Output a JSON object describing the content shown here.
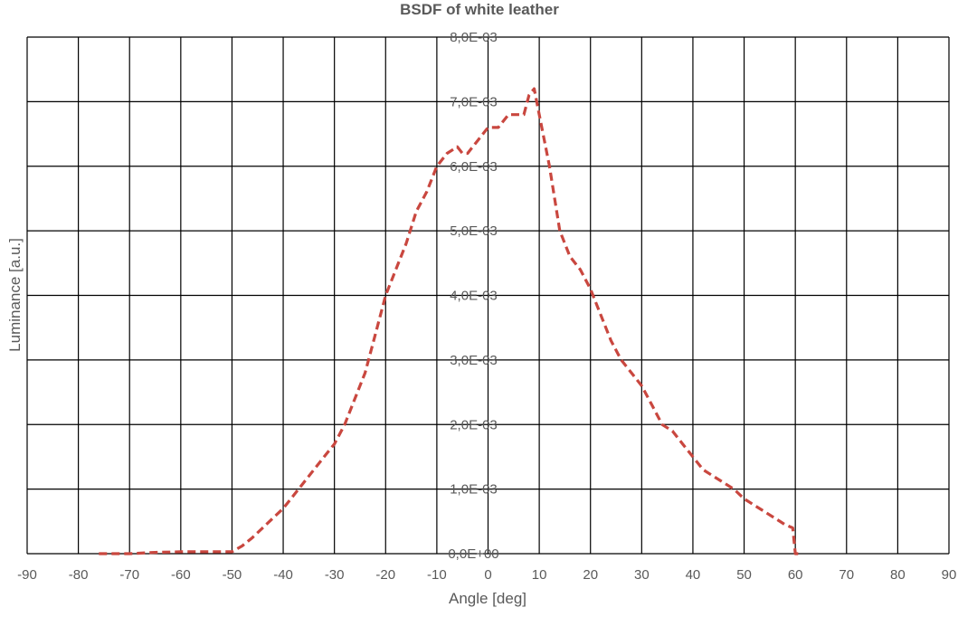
{
  "chart_data": {
    "type": "line",
    "title": "BSDF of white leather",
    "xlabel": "Angle [deg]",
    "ylabel": "Luminance [a.u.]",
    "xlim": [
      -90,
      90
    ],
    "ylim": [
      0,
      0.008
    ],
    "x_ticks": [
      "-90",
      "-80",
      "-70",
      "-60",
      "-50",
      "-40",
      "-30",
      "-20",
      "-10",
      "0",
      "10",
      "20",
      "30",
      "40",
      "50",
      "60",
      "70",
      "80",
      "90"
    ],
    "y_ticks": [
      "0,0E+00",
      "1,0E-03",
      "2,0E-03",
      "3,0E-03",
      "4,0E-03",
      "5,0E-03",
      "6,0E-03",
      "7,0E-03",
      "8,0E-03"
    ],
    "grid": true,
    "y_axis_position": "center",
    "series": [
      {
        "color": "#c9473f",
        "style": "dashed",
        "x": [
          -76,
          -70,
          -65,
          -60,
          -55,
          -50,
          -48,
          -46,
          -44,
          -42,
          -40,
          -38,
          -36,
          -34,
          -32,
          -30,
          -28,
          -26,
          -24,
          -22,
          -20,
          -18,
          -16,
          -14,
          -12,
          -10,
          -8,
          -6,
          -5,
          -4,
          -3,
          -2,
          0,
          2,
          4,
          6,
          7,
          8,
          9,
          10,
          12,
          14,
          16,
          18,
          20,
          22,
          24,
          26,
          28,
          30,
          32,
          34,
          36,
          38,
          40,
          42,
          44,
          46,
          48,
          50,
          52,
          54,
          56,
          58,
          59.5,
          60,
          61
        ],
        "y": [
          0,
          0,
          2e-05,
          3e-05,
          3e-05,
          3e-05,
          0.00012,
          0.00025,
          0.0004,
          0.00055,
          0.0007,
          0.0009,
          0.0011,
          0.0013,
          0.0015,
          0.0017,
          0.002,
          0.0024,
          0.0028,
          0.0034,
          0.004,
          0.0044,
          0.0048,
          0.0053,
          0.0056,
          0.006,
          0.0062,
          0.0063,
          0.0062,
          0.0062,
          0.0063,
          0.0064,
          0.0066,
          0.0066,
          0.0068,
          0.0068,
          0.0068,
          0.0071,
          0.0072,
          0.0068,
          0.006,
          0.005,
          0.0046,
          0.0044,
          0.0041,
          0.0037,
          0.0033,
          0.003,
          0.0028,
          0.0026,
          0.0023,
          0.002,
          0.0019,
          0.0017,
          0.0015,
          0.0013,
          0.0012,
          0.0011,
          0.001,
          0.00085,
          0.00075,
          0.00065,
          0.00055,
          0.00045,
          0.0004,
          0,
          0
        ]
      }
    ]
  }
}
